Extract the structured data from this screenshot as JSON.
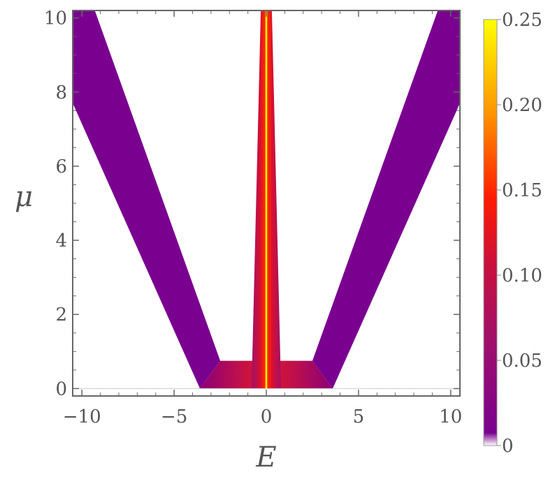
{
  "chart_data": {
    "type": "heatmap",
    "title": "",
    "xlabel": "E",
    "ylabel": "μ",
    "xlim": [
      -10.5,
      10.5
    ],
    "ylim": [
      -0.2,
      10.2
    ],
    "x_ticks": [
      -10,
      -5,
      0,
      5,
      10
    ],
    "x_tick_labels": [
      "−10",
      "−5",
      "0",
      "5",
      "10"
    ],
    "y_ticks": [
      0,
      2,
      4,
      6,
      8,
      10
    ],
    "y_tick_labels": [
      "0",
      "2",
      "4",
      "6",
      "8",
      "10"
    ],
    "colorbar": {
      "range": [
        0,
        0.25
      ],
      "ticks": [
        0,
        0.05,
        0.1,
        0.15,
        0.2,
        0.25
      ],
      "tick_labels": [
        "0",
        "0.05",
        "0.10",
        "0.15",
        "0.20",
        "0.25"
      ],
      "colors": [
        "#ffffff",
        "#7a0090",
        "#b0104e",
        "#e4172a",
        "#ff3a00",
        "#ffa500",
        "#ffff00"
      ]
    },
    "grid": false,
    "regions": {
      "outer_bands": {
        "outer_edge": [
          [
            3.6,
            0.0
          ],
          [
            10.5,
            7.7
          ]
        ],
        "inner_edge": [
          [
            2.5,
            0.75
          ],
          [
            9.3,
            10.2
          ]
        ],
        "value": 0.02
      },
      "central_band": {
        "half_width": [
          [
            0.8,
            0.0
          ],
          [
            0.3,
            10.2
          ]
        ],
        "core_value": 0.25,
        "edge_value": 0.05
      },
      "bottom_connector": {
        "e_range": [
          -3.6,
          3.6
        ],
        "mu_range": [
          0.0,
          0.75
        ],
        "value": 0.07
      }
    }
  },
  "axes": {
    "x_title": "E",
    "y_title": "μ"
  }
}
